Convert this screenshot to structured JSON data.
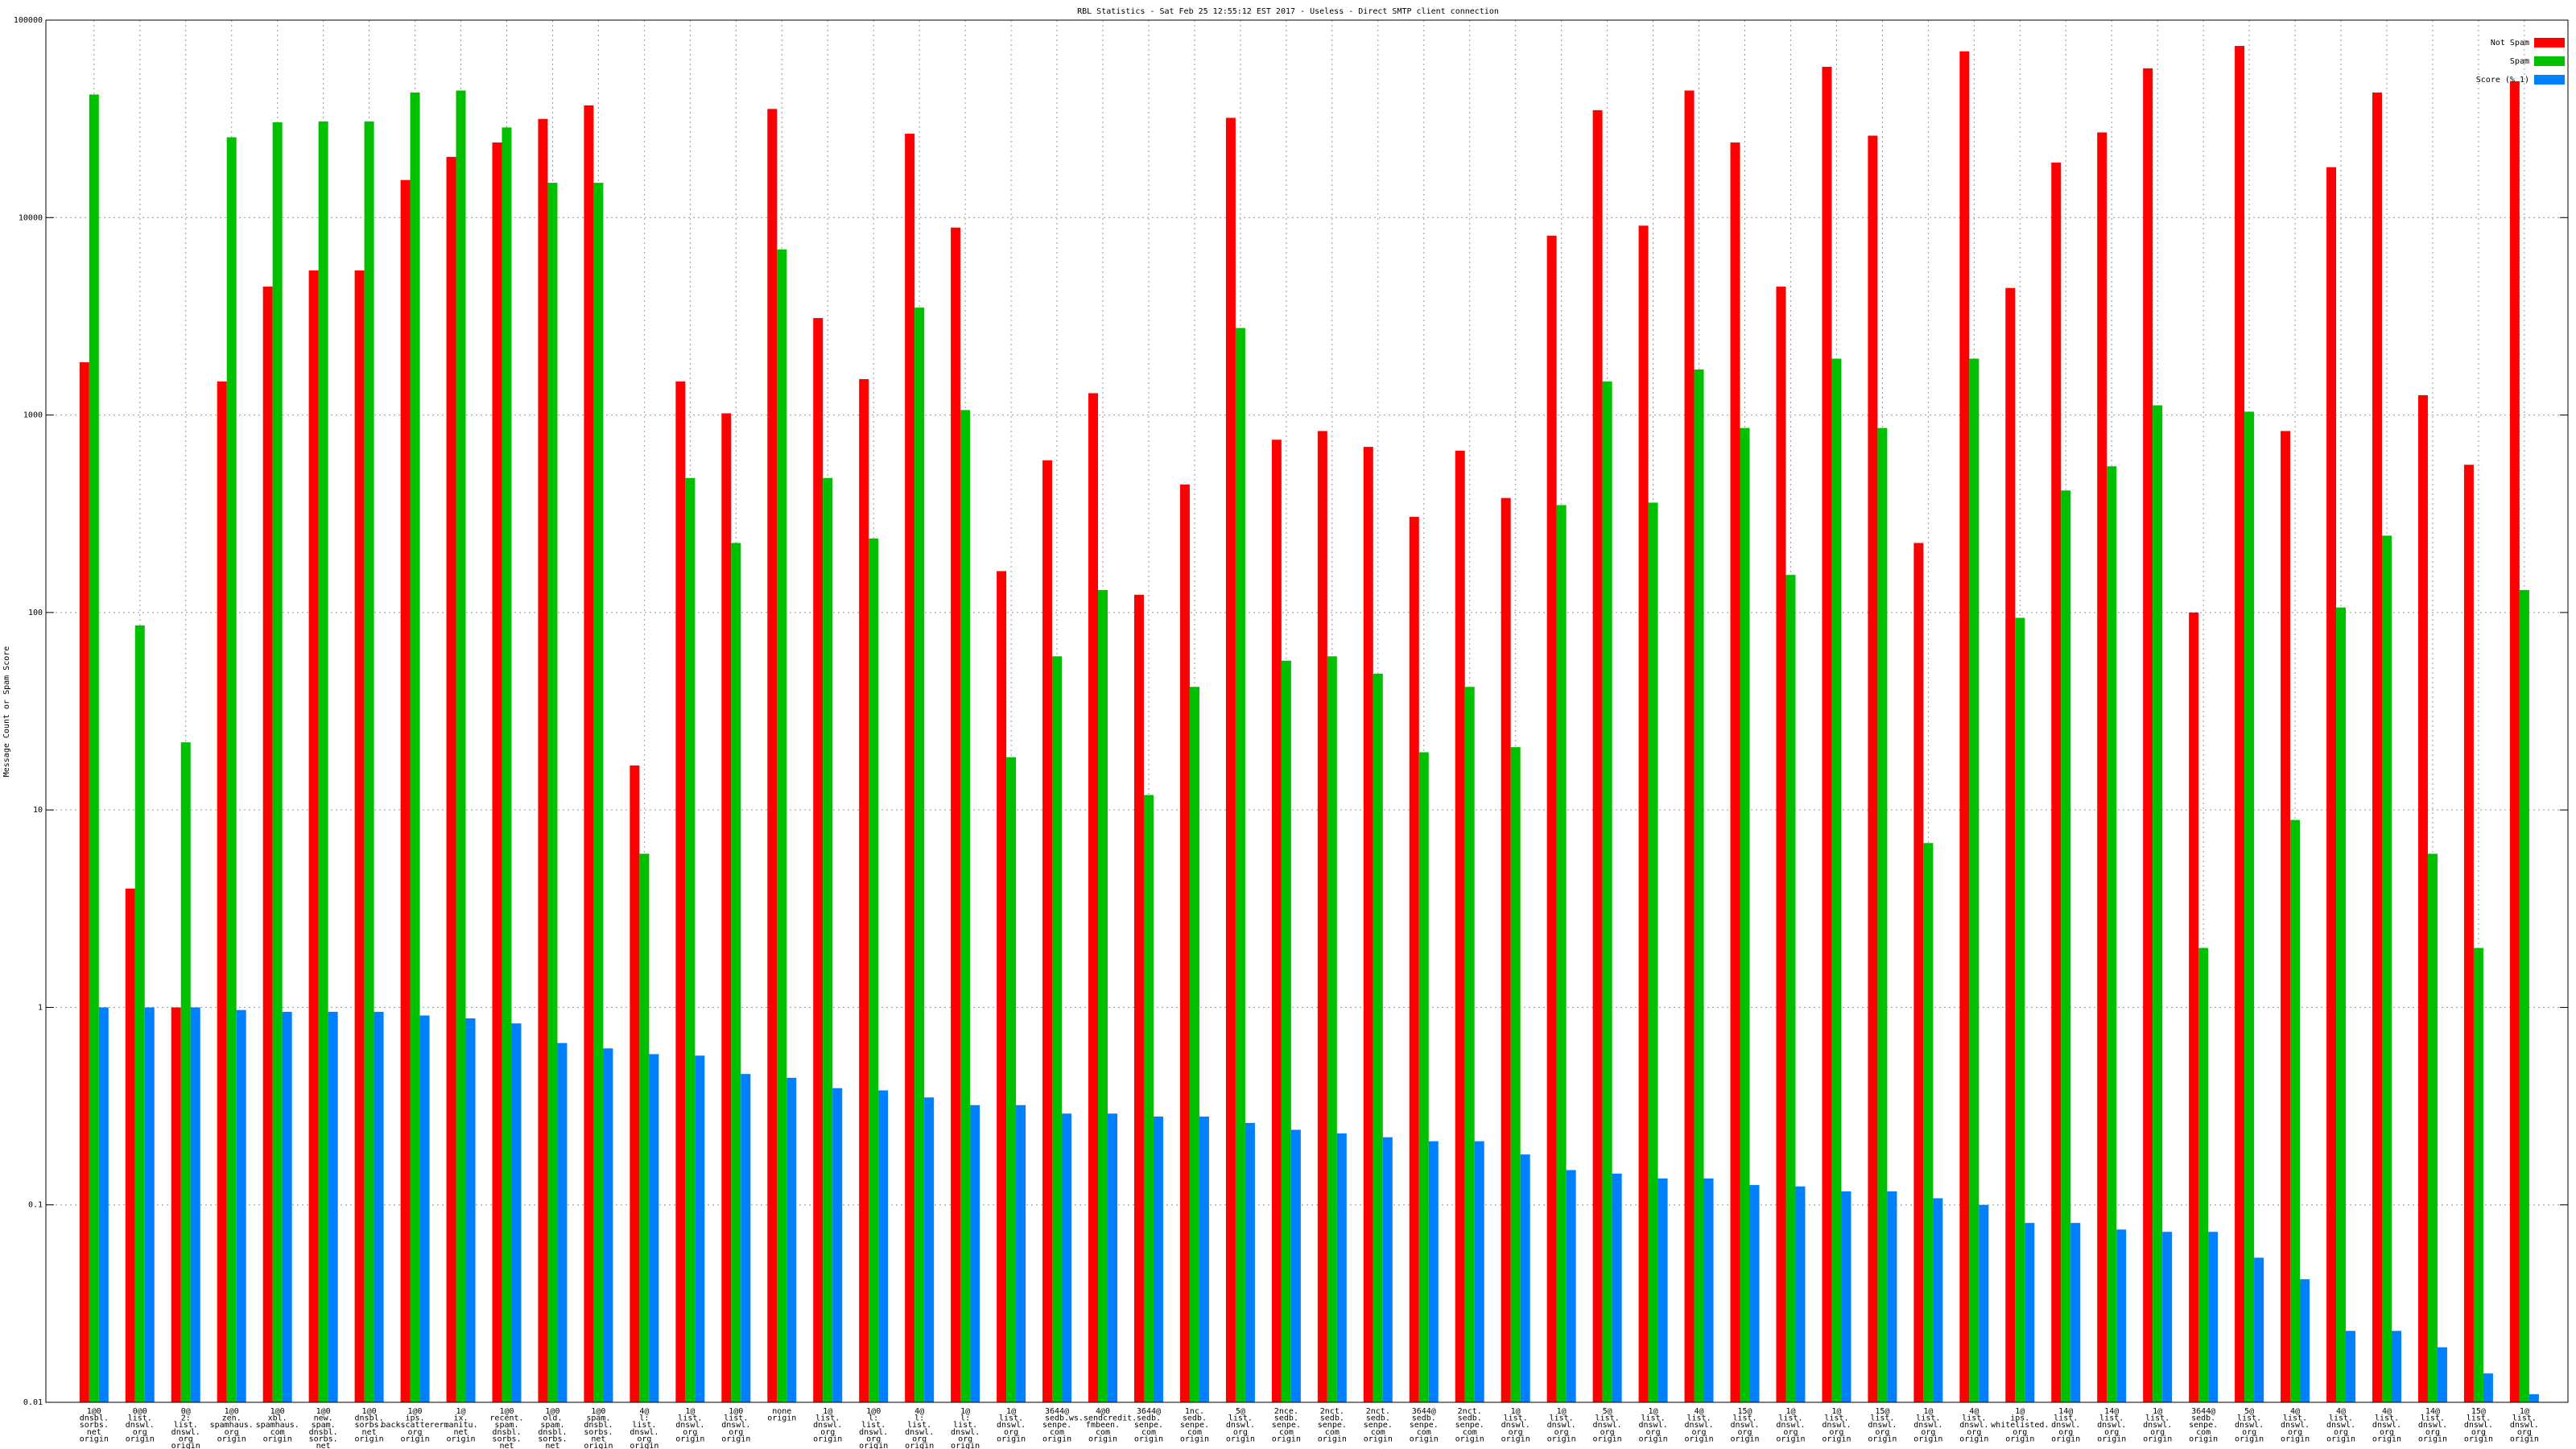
{
  "chart_data": {
    "type": "bar",
    "title": "RBL Statistics - Sat Feb 25 12:55:12 EST 2017 - Useless - Direct SMTP client connection",
    "y_label": "Message Count or Spam Score",
    "log_y": true,
    "grid": true,
    "legend": "top-right",
    "ylim": [
      0.01,
      100000
    ],
    "yticks": [
      0.01,
      0.1,
      1,
      10,
      100,
      1000,
      10000,
      100000
    ],
    "categories": [
      [
        "1@0",
        "dnsbl.",
        "sorbs.",
        "net",
        "origin"
      ],
      [
        "0@0",
        "list.",
        "dnswl.",
        "org",
        "origin"
      ],
      [
        "0@",
        "2:",
        "list.",
        "dnswl.",
        "org",
        "origin"
      ],
      [
        "1@0",
        "zen.",
        "spamhaus.",
        "org",
        "origin"
      ],
      [
        "1@0",
        "xbl.",
        "spamhaus.",
        "com",
        "origin"
      ],
      [
        "1@0",
        "new.",
        "spam.",
        "dnsbl.",
        "sorbs.",
        "net",
        "origin"
      ],
      [
        "1@0",
        "dnsbl.",
        "sorbs.",
        "net",
        "origin"
      ],
      [
        "1@0",
        "ips.",
        "backscatterer.",
        "org",
        "origin"
      ],
      [
        "1@",
        "ix.",
        "manitu.",
        "net",
        "origin"
      ],
      [
        "1@0",
        "recent.",
        "spam.",
        "dnsbl.",
        "sorbs.",
        "net",
        "origin"
      ],
      [
        "1@0",
        "old.",
        "spam.",
        "dnsbl.",
        "sorbs.",
        "net",
        "origin"
      ],
      [
        "1@0",
        "spam.",
        "dnsbl.",
        "sorbs.",
        "net",
        "origin"
      ],
      [
        "4@",
        "l:",
        "list.",
        "dnswl.",
        "org",
        "origin"
      ],
      [
        "1@",
        "list.",
        "dnswl.",
        "org",
        "origin"
      ],
      [
        "1@0",
        "list.",
        "dnswl.",
        "org",
        "origin"
      ],
      [
        "none",
        "origin"
      ],
      [
        "1@",
        "list.",
        "dnswl.",
        "org",
        "origin"
      ],
      [
        "1@0",
        "l:",
        "list.",
        "dnswl.",
        "org",
        "origin"
      ],
      [
        "4@",
        "l:",
        "list.",
        "dnswl.",
        "org",
        "origin"
      ],
      [
        "1@",
        "l:",
        "list.",
        "dnswl.",
        "org",
        "origin"
      ],
      [
        "1@",
        "list.",
        "dnswl.",
        "org",
        "origin"
      ],
      [
        "3644@",
        "sedb.",
        "senpe.",
        "com",
        "origin"
      ],
      [
        "4@0",
        "ws.sendcredit.",
        "fmbeen.",
        "com",
        "origin"
      ],
      [
        "3644@",
        "sedb.",
        "senpe.",
        "com",
        "origin"
      ],
      [
        "1nc.",
        "sedb.",
        "senpe.",
        "com",
        "origin"
      ],
      [
        "5@",
        "list.",
        "dnswl.",
        "org",
        "origin"
      ],
      [
        "2nce.",
        "sedb.",
        "senpe.",
        "com",
        "origin"
      ],
      [
        "2nct.",
        "sedb.",
        "senpe.",
        "com",
        "origin"
      ],
      [
        "2nct.",
        "sedb.",
        "senpe.",
        "com",
        "origin"
      ],
      [
        "3644@",
        "sedb.",
        "senpe.",
        "com",
        "origin"
      ],
      [
        "2nct.",
        "sedb.",
        "senpe.",
        "com",
        "origin"
      ],
      [
        "1@",
        "list.",
        "dnswl.",
        "org",
        "origin"
      ],
      [
        "1@",
        "list.",
        "dnswl.",
        "org",
        "origin"
      ],
      [
        "5@",
        "list.",
        "dnswl.",
        "org",
        "origin"
      ],
      [
        "1@",
        "list.",
        "dnswl.",
        "org",
        "origin"
      ],
      [
        "4@",
        "list.",
        "dnswl.",
        "org",
        "origin"
      ],
      [
        "15@",
        "list.",
        "dnswl.",
        "org",
        "origin"
      ],
      [
        "1@",
        "list.",
        "dnswl.",
        "org",
        "origin"
      ],
      [
        "1@",
        "list.",
        "dnswl.",
        "org",
        "origin"
      ],
      [
        "15@",
        "list.",
        "dnswl.",
        "org",
        "origin"
      ],
      [
        "1@",
        "list.",
        "dnswl.",
        "org",
        "origin"
      ],
      [
        "4@",
        "list.",
        "dnswl.",
        "org",
        "origin"
      ],
      [
        "1@",
        "ips.",
        "whitelisted.",
        "org",
        "origin"
      ],
      [
        "14@",
        "list.",
        "dnswl.",
        "org",
        "origin"
      ],
      [
        "14@",
        "list.",
        "dnswl.",
        "org",
        "origin"
      ],
      [
        "1@",
        "list.",
        "dnswl.",
        "org",
        "origin"
      ],
      [
        "3644@",
        "sedb.",
        "senpe.",
        "com",
        "origin"
      ],
      [
        "5@",
        "list.",
        "dnswl.",
        "org",
        "origin"
      ],
      [
        "4@",
        "list.",
        "dnswl.",
        "org",
        "origin"
      ],
      [
        "4@",
        "list.",
        "dnswl.",
        "org",
        "origin"
      ],
      [
        "4@",
        "list.",
        "dnswl.",
        "org",
        "origin"
      ],
      [
        "14@",
        "list.",
        "dnswl.",
        "org",
        "origin"
      ],
      [
        "15@",
        "list.",
        "dnswl.",
        "org",
        "origin"
      ],
      [
        "1@",
        "list.",
        "dnswl.",
        "org",
        "origin"
      ]
    ],
    "series": [
      {
        "name": "Not Spam",
        "color": "#ff0000",
        "values": [
          1850,
          4,
          1,
          1480,
          4470,
          5400,
          5400,
          15500,
          20300,
          24000,
          31600,
          37000,
          16.8,
          1480,
          1020,
          35500,
          3100,
          1520,
          26600,
          8900,
          162,
          590,
          1290,
          123,
          445,
          32000,
          750,
          830,
          690,
          305,
          660,
          380,
          8100,
          35000,
          9100,
          44000,
          24000,
          4470,
          58000,
          26000,
          225,
          69500,
          4400,
          19000,
          27000,
          57000,
          100,
          74000,
          830,
          18000,
          43000,
          1260,
          560,
          49000
        ]
      },
      {
        "name": "Spam",
        "color": "#00c000",
        "values": [
          42000,
          86,
          22,
          25500,
          30400,
          30700,
          30700,
          43000,
          44000,
          28600,
          15000,
          15000,
          6,
          480,
          225,
          6900,
          480,
          237,
          3500,
          1060,
          18.5,
          60,
          130,
          11.9,
          42,
          2760,
          57,
          60,
          49,
          19.6,
          42,
          20.8,
          350,
          1480,
          360,
          1700,
          860,
          155,
          1930,
          860,
          6.8,
          1930,
          94,
          415,
          550,
          1120,
          2,
          1040,
          8.9,
          106,
          245,
          6,
          2,
          130
        ]
      },
      {
        "name": "Score (% 1)",
        "color": "#0080ff",
        "values": [
          1,
          1,
          1,
          0.97,
          0.95,
          0.95,
          0.95,
          0.91,
          0.88,
          0.83,
          0.66,
          0.62,
          0.58,
          0.57,
          0.46,
          0.44,
          0.39,
          0.38,
          0.35,
          0.32,
          0.32,
          0.29,
          0.29,
          0.28,
          0.28,
          0.26,
          0.24,
          0.23,
          0.22,
          0.21,
          0.21,
          0.18,
          0.15,
          0.144,
          0.136,
          0.136,
          0.126,
          0.124,
          0.117,
          0.117,
          0.108,
          0.1,
          0.081,
          0.081,
          0.075,
          0.073,
          0.073,
          0.054,
          0.042,
          0.023,
          0.023,
          0.019,
          0.014,
          0.011
        ]
      }
    ]
  }
}
